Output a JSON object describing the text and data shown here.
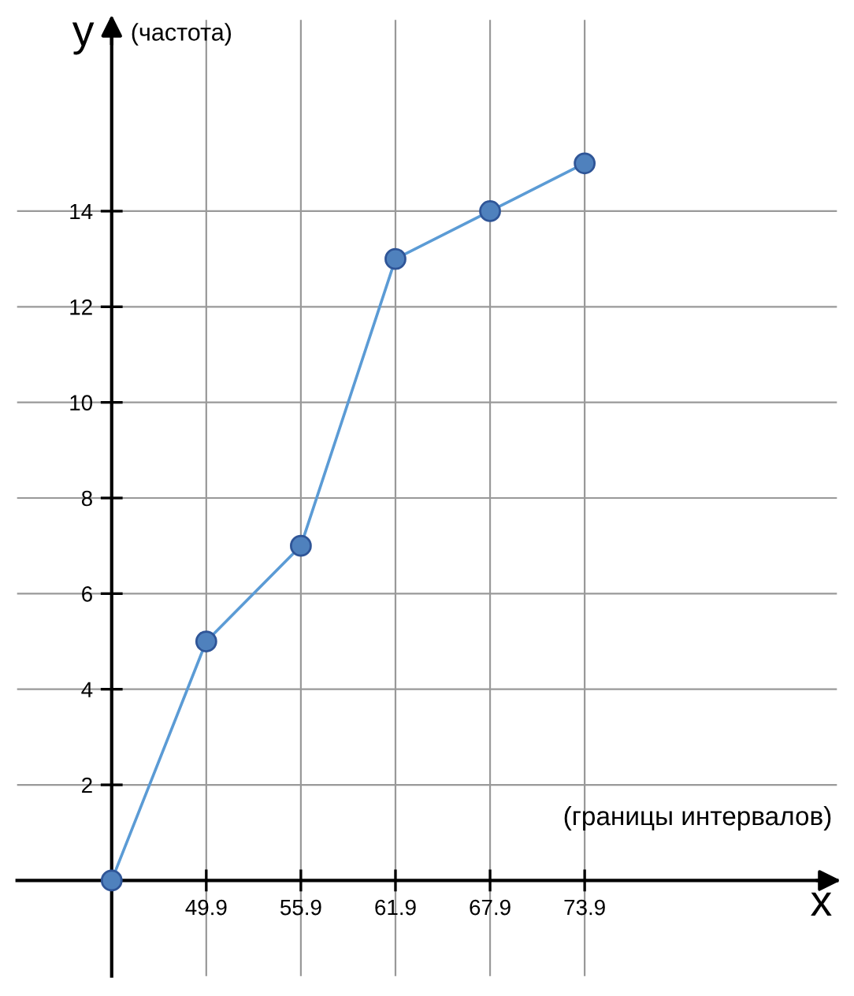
{
  "chart_data": {
    "type": "line",
    "xlabel": "x (границы интервалов)",
    "ylabel": "y (частота)",
    "x": [
      43.9,
      49.9,
      55.9,
      61.9,
      67.9,
      73.9
    ],
    "series": [
      {
        "color": "#5b9bd5",
        "values": [
          0,
          5,
          7,
          13,
          14,
          15
        ]
      }
    ],
    "xlim": [
      37.9,
      89.9
    ],
    "ylim": [
      -2,
      18
    ],
    "xticks": [
      {
        "value": 43.9,
        "label": null
      },
      49.9,
      55.9,
      61.9,
      67.9,
      73.9
    ],
    "yticks": [
      2,
      4,
      6,
      8,
      10,
      12,
      14
    ],
    "grid": true,
    "marker": "circle",
    "line_style": "solid"
  }
}
